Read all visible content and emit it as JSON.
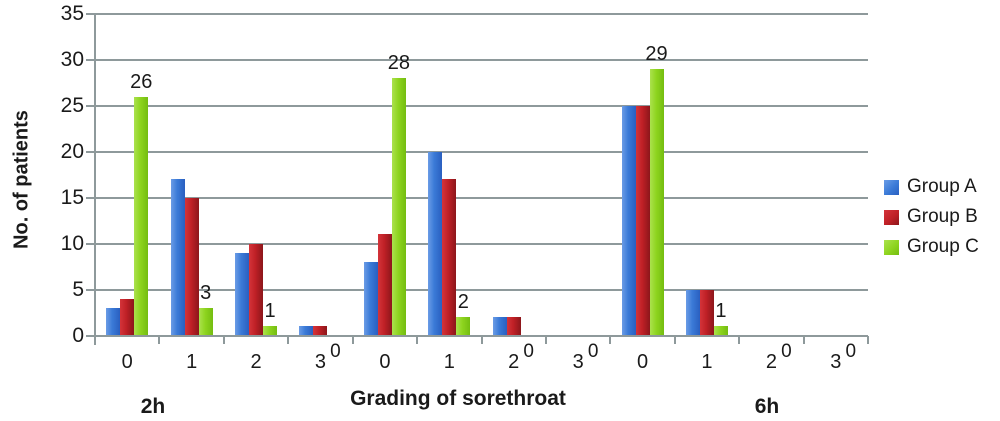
{
  "chart_data": {
    "type": "bar",
    "title": "",
    "xlabel": "Grading of sorethroat",
    "ylabel": "No. of patients",
    "ylim": [
      0,
      35
    ],
    "yticks": [
      0,
      5,
      10,
      15,
      20,
      25,
      30,
      35
    ],
    "grid": "horizontal",
    "legend_position": "right",
    "axis_color": "#8e999b",
    "text_color": "#1a1a1a",
    "section_labels": [
      "2h",
      "6h"
    ],
    "categories": [
      "0",
      "1",
      "2",
      "3",
      "0",
      "1",
      "2",
      "3",
      "0",
      "1",
      "2",
      "3"
    ],
    "series": [
      {
        "name": "Group A",
        "color": "#3a7ad7",
        "color_light": "#6b9ce6",
        "color_dark": "#2a5fc0",
        "values": [
          3,
          17,
          9,
          1,
          8,
          20,
          2,
          0,
          25,
          5,
          0,
          0
        ],
        "show_labels": false
      },
      {
        "name": "Group B",
        "color": "#bf2026",
        "color_light": "#d4343a",
        "color_dark": "#8c161b",
        "values": [
          4,
          15,
          10,
          1,
          11,
          17,
          2,
          0,
          25,
          5,
          0,
          0
        ],
        "show_labels": false
      },
      {
        "name": "Group C",
        "color": "#8ed41f",
        "color_light": "#abe24e",
        "color_dark": "#74bd10",
        "values": [
          26,
          3,
          1,
          0,
          28,
          2,
          0,
          0,
          29,
          1,
          0,
          0
        ],
        "show_labels": true
      }
    ]
  }
}
